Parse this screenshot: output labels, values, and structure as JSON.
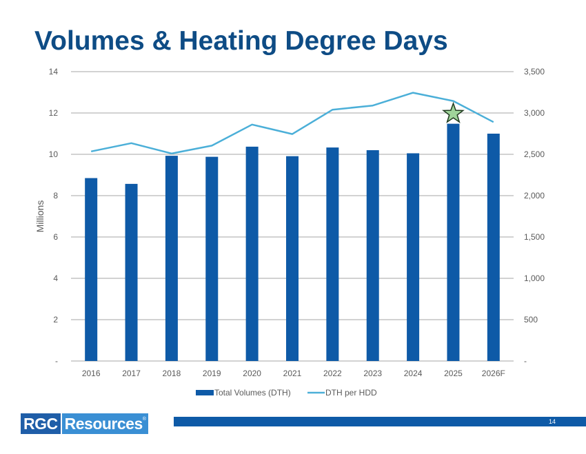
{
  "slide": {
    "title": "Volumes & Heating Degree Days",
    "page_number": "14"
  },
  "footer": {
    "logo_left": "RGC",
    "logo_right": "Resources",
    "logo_mark": "®",
    "bar_color": "#0e5aa7"
  },
  "colors": {
    "title": "#0e4c85",
    "bars": "#0e5aa7",
    "line": "#4bafd8",
    "star": "#9fd49a"
  },
  "chart_data": {
    "type": "bar",
    "categories": [
      "2016",
      "2017",
      "2018",
      "2019",
      "2020",
      "2021",
      "2022",
      "2023",
      "2024",
      "2025",
      "2026F"
    ],
    "series": [
      {
        "name": "Total Volumes (DTH)",
        "type": "bar",
        "axis": "left",
        "values": [
          8.85,
          8.57,
          9.93,
          9.88,
          10.37,
          9.91,
          10.33,
          10.2,
          10.05,
          11.48,
          11.0
        ]
      },
      {
        "name": "DTH per HDD",
        "type": "line",
        "axis": "right",
        "values": [
          2535,
          2635,
          2510,
          2605,
          2860,
          2745,
          3040,
          3090,
          3245,
          3145,
          2890
        ]
      }
    ],
    "ylabel": "Millions",
    "y_left": {
      "min": 0,
      "max": 14,
      "ticks": [
        "-",
        "2",
        "4",
        "6",
        "8",
        "10",
        "12",
        "14"
      ]
    },
    "y_right": {
      "min": 0,
      "max": 3500,
      "ticks": [
        "-",
        "500",
        "1,000",
        "1,500",
        "2,000",
        "2,500",
        "3,000",
        "3,500"
      ]
    },
    "grid": true,
    "legend_position": "bottom",
    "annotation": {
      "type": "star",
      "category": "2025"
    }
  }
}
